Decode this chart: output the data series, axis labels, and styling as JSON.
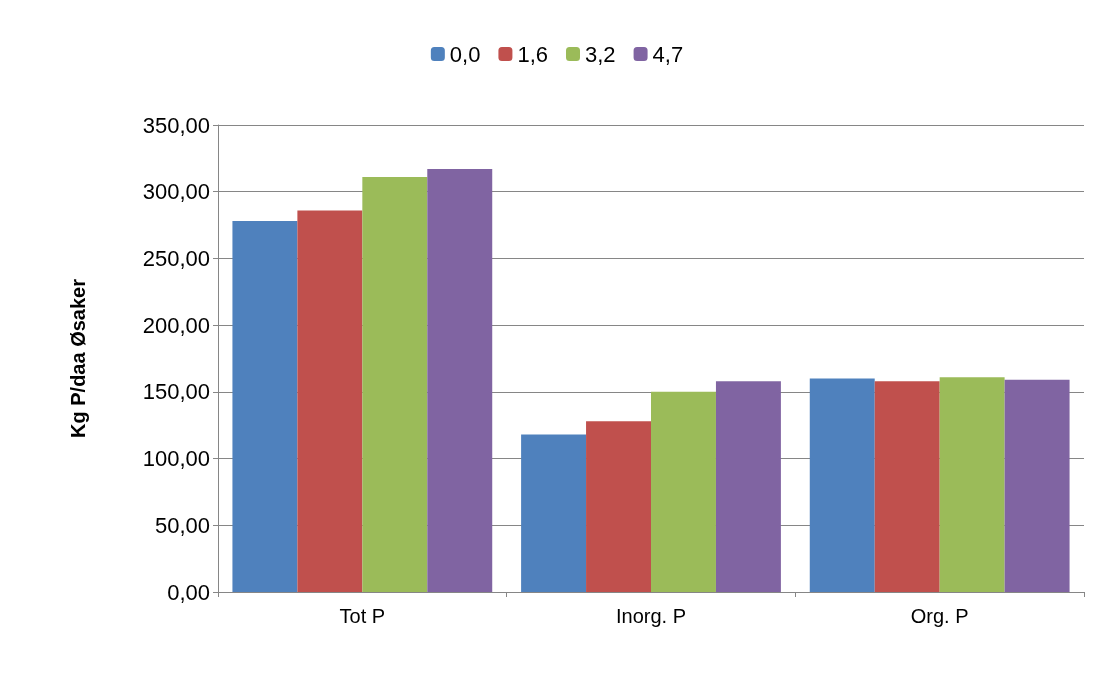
{
  "chart_data": {
    "type": "bar",
    "ylabel": "Kg P/daa Øsaker",
    "categories": [
      "Tot P",
      "Inorg. P",
      "Org. P"
    ],
    "series": [
      {
        "name": "0,0",
        "color": "#4f81bd",
        "values": [
          278,
          118,
          160
        ]
      },
      {
        "name": "1,6",
        "color": "#c0504d",
        "values": [
          286,
          128,
          158
        ]
      },
      {
        "name": "3,2",
        "color": "#9bbb59",
        "values": [
          311,
          150,
          161
        ]
      },
      {
        "name": "4,7",
        "color": "#8064a2",
        "values": [
          317,
          158,
          159
        ]
      }
    ],
    "ylim": [
      0,
      350
    ],
    "yticks": [
      {
        "value": 0,
        "label": "0,00"
      },
      {
        "value": 50,
        "label": "50,00"
      },
      {
        "value": 100,
        "label": "100,00"
      },
      {
        "value": 150,
        "label": "150,00"
      },
      {
        "value": 200,
        "label": "200,00"
      },
      {
        "value": 250,
        "label": "250,00"
      },
      {
        "value": 300,
        "label": "300,00"
      },
      {
        "value": 350,
        "label": "350,00"
      }
    ],
    "grid": "y",
    "legend": "top"
  }
}
